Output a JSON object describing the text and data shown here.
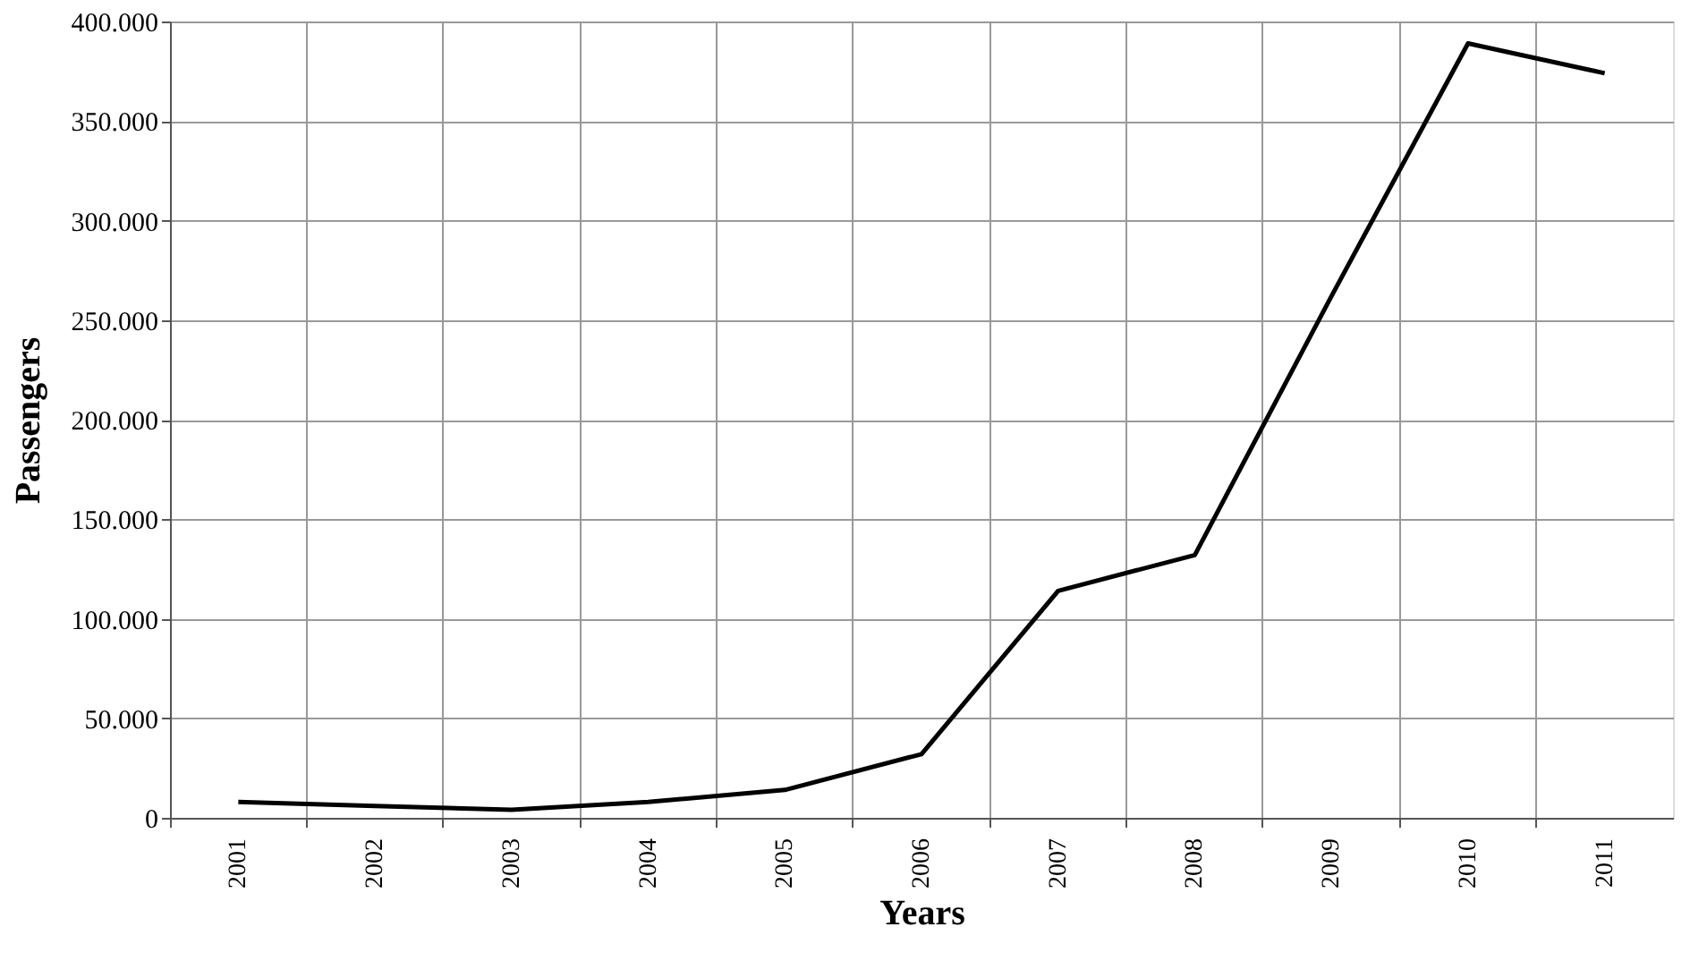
{
  "chart_data": {
    "type": "line",
    "xlabel": "Years",
    "ylabel": "Passengers",
    "categories": [
      "2001",
      "2002",
      "2003",
      "2004",
      "2005",
      "2006",
      "2007",
      "2008",
      "2009",
      "2010",
      "2011"
    ],
    "series": [
      {
        "color": "#000000",
        "values": [
          8000,
          6000,
          4000,
          8000,
          14000,
          32000,
          114000,
          132000,
          262000,
          389000,
          374000
        ]
      }
    ],
    "ylim": [
      0,
      400000
    ],
    "yticks": [
      {
        "value": 0,
        "label": "0"
      },
      {
        "value": 50000,
        "label": "50.000"
      },
      {
        "value": 100000,
        "label": "100.000"
      },
      {
        "value": 150000,
        "label": "150.000"
      },
      {
        "value": 200000,
        "label": "200.000"
      },
      {
        "value": 250000,
        "label": "250.000"
      },
      {
        "value": 300000,
        "label": "300.000"
      },
      {
        "value": 350000,
        "label": "350.000"
      },
      {
        "value": 400000,
        "label": "400.000"
      }
    ],
    "grid": true,
    "marker": "none",
    "line_style": "solid"
  }
}
